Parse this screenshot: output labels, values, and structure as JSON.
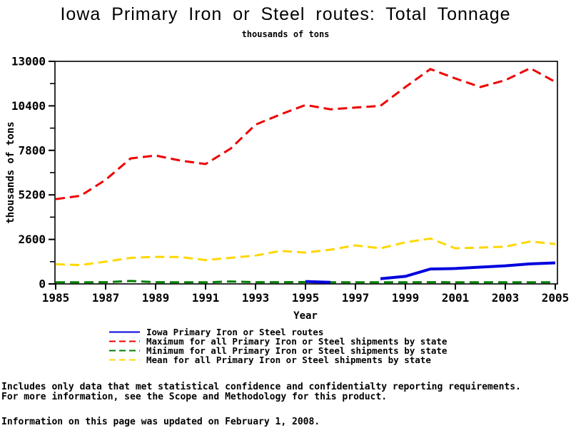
{
  "title": "Iowa Primary Iron or Steel routes: Total Tonnage",
  "subtitle": "thousands of tons",
  "footnotes": {
    "line1": "Includes only data that met statistical confidence and confidentialty reporting requirements.",
    "line2": "For more information, see the Scope and Methodology for this product.",
    "line3": "Information on this page was updated on February 1, 2008."
  },
  "chart_data": {
    "type": "line",
    "title": "Iowa Primary Iron or Steel routes: Total Tonnage",
    "subtitle": "thousands of tons",
    "xlabel": "Year",
    "ylabel": "thousands of tons",
    "xlim": [
      1985,
      2005
    ],
    "ylim": [
      0,
      13000
    ],
    "grid": false,
    "legend_position": "bottom-left",
    "x": [
      1985,
      1986,
      1987,
      1988,
      1989,
      1990,
      1991,
      1992,
      1993,
      1994,
      1995,
      1996,
      1997,
      1998,
      1999,
      2000,
      2001,
      2002,
      2003,
      2004,
      2005
    ],
    "x_tick_labels": [
      "1985",
      "1987",
      "1989",
      "1991",
      "1993",
      "1995",
      "1997",
      "1999",
      "2001",
      "2003",
      "2005"
    ],
    "y_ticks": [
      0,
      2600,
      5200,
      7800,
      10400,
      13000
    ],
    "y_minor_tick_step": 1300,
    "axis_color": "#000000",
    "series": [
      {
        "name": "Iowa Primary Iron or Steel routes",
        "color": "#0000dd",
        "style": "solid",
        "values": [
          null,
          null,
          null,
          null,
          null,
          null,
          null,
          null,
          null,
          null,
          140,
          90,
          null,
          300,
          440,
          870,
          900,
          980,
          1060,
          1170,
          1230
        ]
      },
      {
        "name": "Maximum for all Primary Iron or Steel shipments by state",
        "color": "#ee0000",
        "style": "dashed",
        "values": [
          4950,
          5150,
          6080,
          7330,
          7500,
          7200,
          7000,
          7900,
          9300,
          9900,
          10450,
          10200,
          10300,
          10400,
          11500,
          12550,
          12000,
          11500,
          11900,
          12600,
          11800
        ]
      },
      {
        "name": "Minimum for all Primary Iron or Steel shipments by state",
        "color": "#008000",
        "style": "dashed",
        "values": [
          90,
          90,
          100,
          170,
          100,
          90,
          90,
          140,
          100,
          100,
          110,
          90,
          90,
          90,
          90,
          100,
          90,
          90,
          90,
          90,
          90
        ]
      },
      {
        "name": "Mean for all Primary Iron or Steel shipments by state",
        "color": "#ffd700",
        "style": "dashed",
        "values": [
          1150,
          1100,
          1300,
          1520,
          1580,
          1570,
          1390,
          1520,
          1660,
          1930,
          1830,
          2000,
          2250,
          2080,
          2430,
          2650,
          2080,
          2120,
          2180,
          2480,
          2330
        ]
      }
    ]
  }
}
